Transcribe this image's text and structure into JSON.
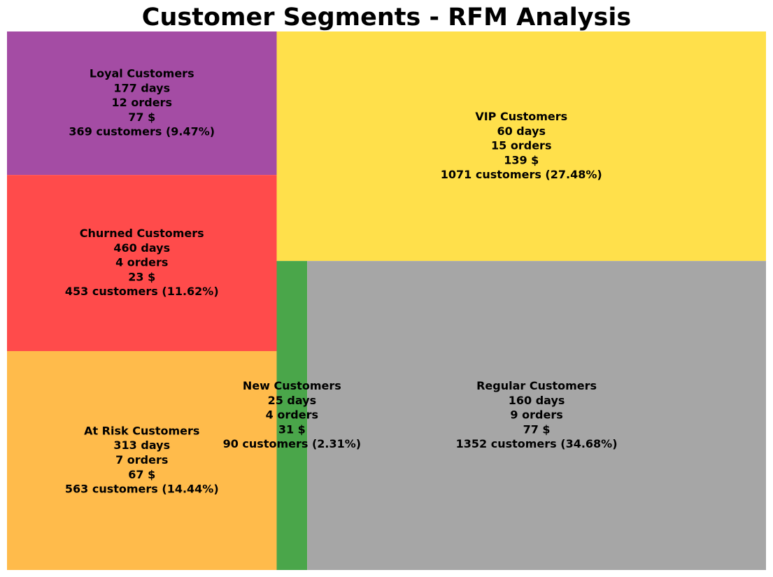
{
  "chart_data": {
    "type": "treemap",
    "title": "Customer Segments - RFM Analysis",
    "segments": [
      {
        "name": "Loyal Customers",
        "recency": "177 days",
        "frequency": "12 orders",
        "monetary": "77 $",
        "customers": "369 customers (9.47%)",
        "count": 369,
        "percent": 9.47,
        "color": "#a44ca4"
      },
      {
        "name": "Churned Customers",
        "recency": "460 days",
        "frequency": "4 orders",
        "monetary": "23 $",
        "customers": "453 customers (11.62%)",
        "count": 453,
        "percent": 11.62,
        "color": "#ff4b4b"
      },
      {
        "name": "At Risk Customers",
        "recency": "313 days",
        "frequency": "7 orders",
        "monetary": "67 $",
        "customers": "563 customers (14.44%)",
        "count": 563,
        "percent": 14.44,
        "color": "#ffbb4b"
      },
      {
        "name": "VIP Customers",
        "recency": "60 days",
        "frequency": "15 orders",
        "monetary": "139 $",
        "customers": "1071 customers (27.48%)",
        "count": 1071,
        "percent": 27.48,
        "color": "#ffe04b"
      },
      {
        "name": "New Customers",
        "recency": "25 days",
        "frequency": "4 orders",
        "monetary": "31 $",
        "customers": "90 customers (2.31%)",
        "count": 90,
        "percent": 2.31,
        "color": "#4aa64a"
      },
      {
        "name": "Regular Customers",
        "recency": "160 days",
        "frequency": "9 orders",
        "monetary": "77 $",
        "customers": "1352 customers (34.68%)",
        "count": 1352,
        "percent": 34.68,
        "color": "#a6a6a6"
      }
    ]
  }
}
